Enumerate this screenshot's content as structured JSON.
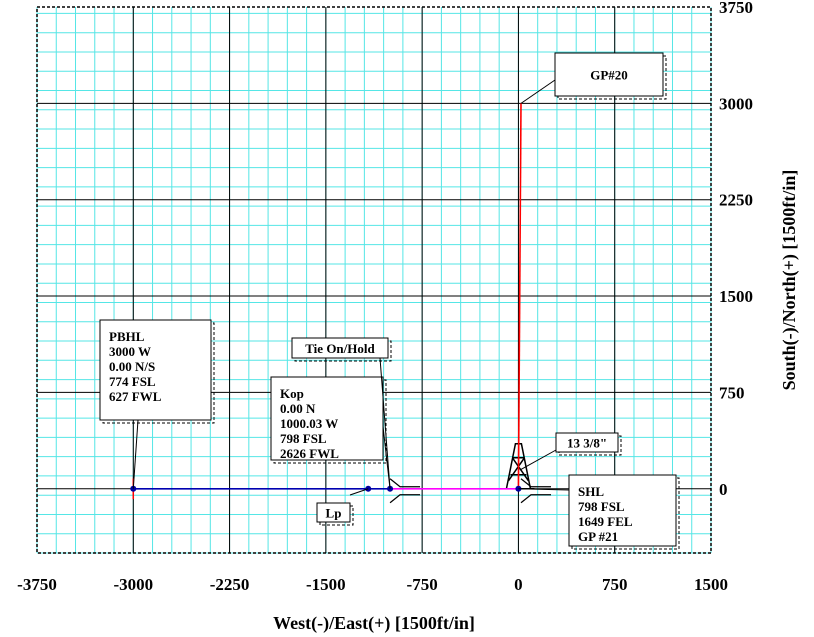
{
  "chart_data": {
    "type": "line",
    "xlabel": "West(-)/East(+) [1500ft/in]",
    "ylabel": "South(-)/North(+) [1500ft/in]",
    "xlim": [
      -3750,
      1500
    ],
    "ylim": [
      -500,
      3750
    ],
    "x_ticks": [
      "-3750",
      "-3000",
      "-2250",
      "-1500",
      "-750",
      "0",
      "750",
      "1500"
    ],
    "y_ticks": [
      "3750",
      "3000",
      "2250",
      "1500",
      "750",
      "0"
    ],
    "grid": true,
    "series": [
      {
        "color": "#0000b0",
        "points": [
          [
            -3000,
            0
          ],
          [
            -1000,
            0
          ]
        ]
      },
      {
        "color": "#ff00ff",
        "points": [
          [
            -1000,
            0
          ],
          [
            0,
            0
          ]
        ]
      },
      {
        "color": "#ff0000",
        "points": [
          [
            0,
            0
          ],
          [
            20,
            3000
          ]
        ]
      }
    ],
    "markers": [
      {
        "x": -3000,
        "y": 0
      },
      {
        "x": -1170,
        "y": 0
      },
      {
        "x": -1000,
        "y": 0
      },
      {
        "x": 0,
        "y": 0
      }
    ],
    "annotations": [
      {
        "lines": [
          "PBHL",
          "3000 W",
          "0.00 N/S",
          "774 FSL",
          "627 FWL"
        ],
        "x": -3000,
        "y": 0
      },
      {
        "lines": [
          "Kop",
          "0.00 N",
          "1000.03 W",
          "798 FSL",
          "2626 FWL"
        ],
        "x": -1000,
        "y": 0
      },
      {
        "lines": [
          "Tie On/Hold"
        ],
        "x": -1000,
        "y": 0
      },
      {
        "lines": [
          "Lp"
        ],
        "x": -1170,
        "y": 0
      },
      {
        "lines": [
          "GP#20"
        ],
        "x": 20,
        "y": 3000
      },
      {
        "lines": [
          "13 3/8\""
        ],
        "x": 20,
        "y": 150
      },
      {
        "lines": [
          "SHL",
          "798 FSL",
          "1649 FEL",
          "GP #21"
        ],
        "x": 0,
        "y": 0
      }
    ]
  }
}
